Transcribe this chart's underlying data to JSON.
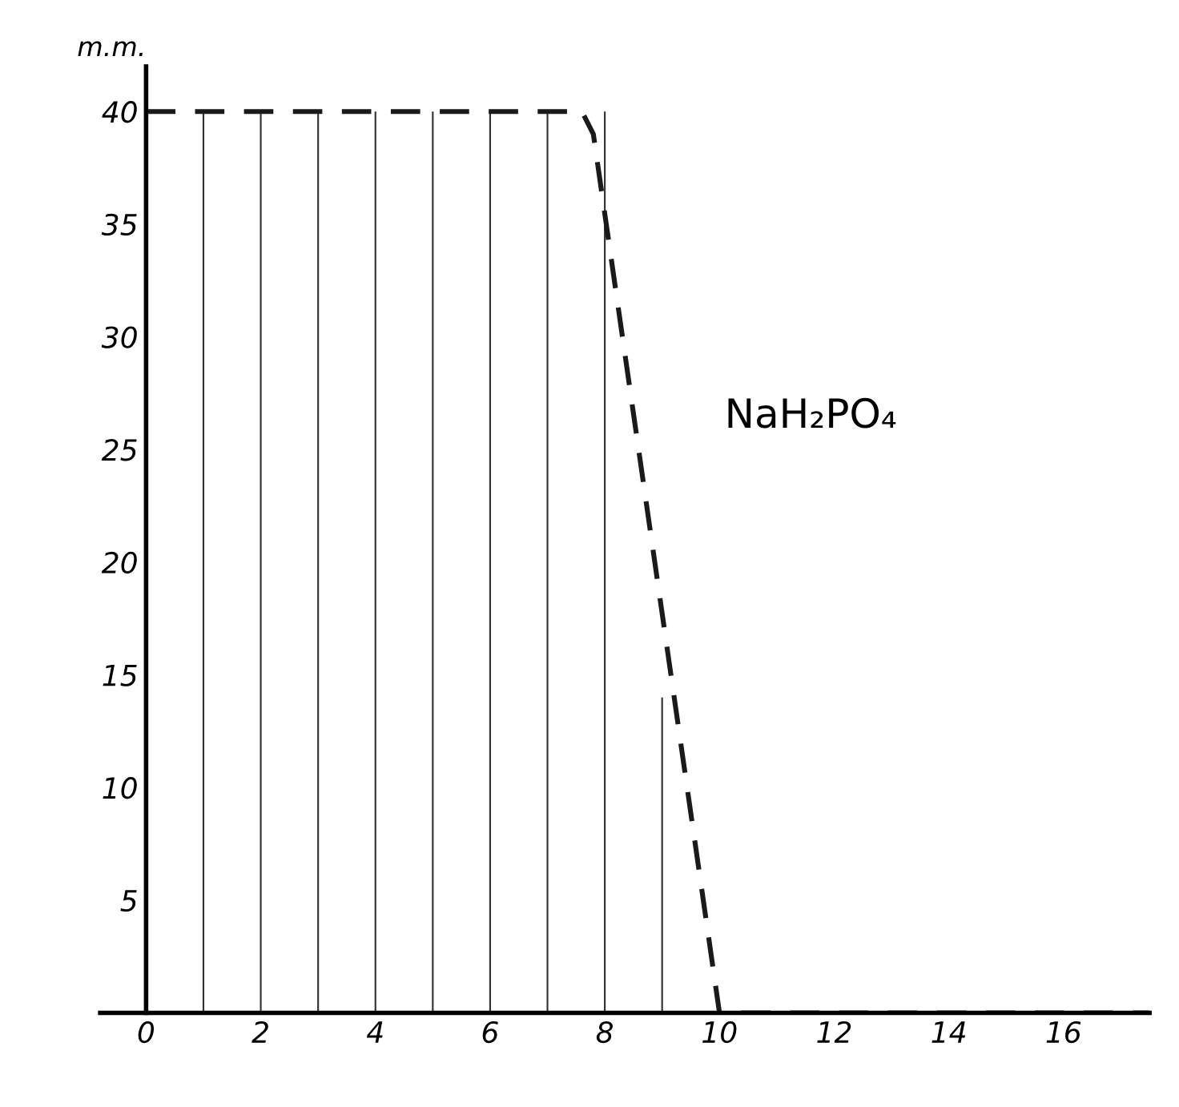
{
  "chart_data": {
    "type": "line",
    "ylabel": "m.m.",
    "x": [
      0,
      7.6,
      7.8,
      10,
      17.5
    ],
    "series": [
      {
        "color": "#1a1a1a",
        "values": [
          40,
          40,
          39,
          0,
          0
        ],
        "line_style": "dashed"
      },
      {
        "type": "bar",
        "color": "#333333",
        "x": [
          1,
          2,
          3,
          4,
          5,
          6,
          7,
          8,
          9
        ],
        "values": [
          40,
          40,
          40,
          40,
          40,
          40,
          40,
          40,
          14
        ]
      }
    ],
    "annotations": [
      "NaH₂PO₄"
    ],
    "xlim": [
      -0.8,
      17.5
    ],
    "ylim": [
      0,
      42
    ],
    "xticks": [
      0,
      2,
      4,
      6,
      8,
      10,
      12,
      14,
      16
    ],
    "yticks": [
      5,
      10,
      15,
      20,
      25,
      30,
      35,
      40
    ],
    "grid": false,
    "legend": false
  }
}
